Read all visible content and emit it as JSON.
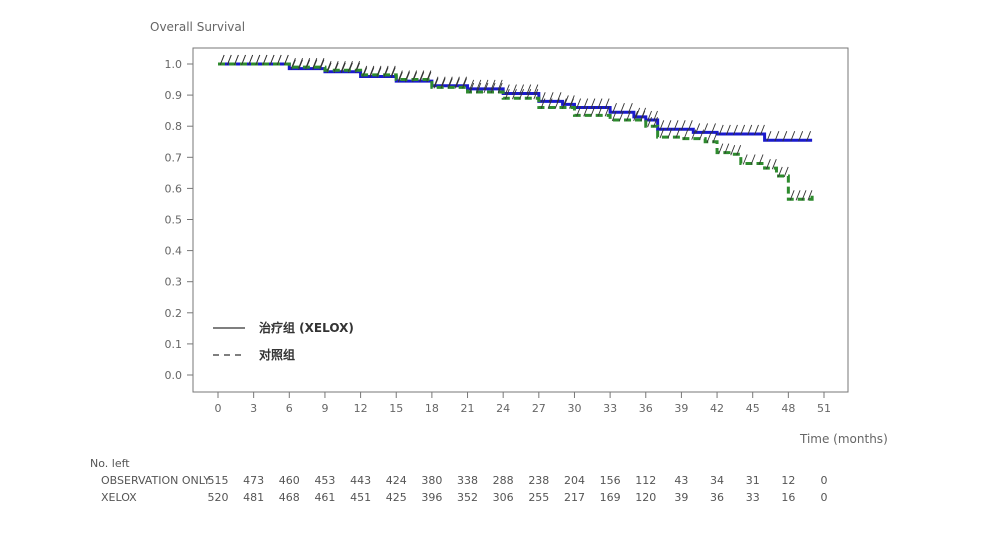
{
  "chart_data": {
    "type": "line",
    "title": "Overall Survival",
    "xlabel": "Time (months)",
    "ylabel": "",
    "xlim": [
      0,
      51
    ],
    "ylim": [
      0,
      1.0
    ],
    "x_ticks": [
      0,
      3,
      6,
      9,
      12,
      15,
      18,
      21,
      24,
      27,
      30,
      33,
      36,
      39,
      42,
      45,
      48,
      51
    ],
    "y_ticks": [
      "0.0",
      "0.1",
      "0.2",
      "0.3",
      "0.4",
      "0.5",
      "0.6",
      "0.7",
      "0.8",
      "0.9",
      "1.0"
    ],
    "grid": false,
    "legend_position": "bottom-left",
    "series": [
      {
        "name": "治疗组 (XELOX)",
        "color": "#1a1acc",
        "style": "solid",
        "points": [
          [
            0,
            1.0
          ],
          [
            3,
            1.0
          ],
          [
            6,
            0.985
          ],
          [
            9,
            0.975
          ],
          [
            12,
            0.96
          ],
          [
            15,
            0.945
          ],
          [
            18,
            0.93
          ],
          [
            21,
            0.92
          ],
          [
            24,
            0.905
          ],
          [
            27,
            0.88
          ],
          [
            29,
            0.87
          ],
          [
            30,
            0.86
          ],
          [
            33,
            0.845
          ],
          [
            35,
            0.83
          ],
          [
            36,
            0.82
          ],
          [
            37,
            0.79
          ],
          [
            40,
            0.78
          ],
          [
            42,
            0.775
          ],
          [
            45,
            0.775
          ],
          [
            46,
            0.755
          ],
          [
            48,
            0.755
          ],
          [
            50,
            0.755
          ]
        ]
      },
      {
        "name": "对照组",
        "color": "#2e8b2e",
        "style": "dashed",
        "points": [
          [
            0,
            1.0
          ],
          [
            3,
            1.0
          ],
          [
            6,
            0.99
          ],
          [
            9,
            0.98
          ],
          [
            12,
            0.965
          ],
          [
            15,
            0.95
          ],
          [
            18,
            0.925
          ],
          [
            21,
            0.91
          ],
          [
            24,
            0.89
          ],
          [
            27,
            0.86
          ],
          [
            30,
            0.835
          ],
          [
            33,
            0.82
          ],
          [
            36,
            0.8
          ],
          [
            37,
            0.765
          ],
          [
            39,
            0.76
          ],
          [
            41,
            0.75
          ],
          [
            42,
            0.715
          ],
          [
            43,
            0.71
          ],
          [
            44,
            0.68
          ],
          [
            46,
            0.665
          ],
          [
            47,
            0.64
          ],
          [
            48,
            0.565
          ],
          [
            49,
            0.565
          ],
          [
            50,
            0.585
          ]
        ]
      }
    ],
    "risk_table": {
      "header": "No. left",
      "rows": [
        {
          "label": "OBSERVATION ONLY",
          "values": [
            "515",
            "473",
            "460",
            "453",
            "443",
            "424",
            "380",
            "338",
            "288",
            "238",
            "204",
            "156",
            "112",
            "43",
            "34",
            "31",
            "12",
            "0"
          ]
        },
        {
          "label": "XELOX",
          "values": [
            "520",
            "481",
            "468",
            "461",
            "451",
            "425",
            "396",
            "352",
            "306",
            "255",
            "217",
            "169",
            "120",
            "39",
            "36",
            "33",
            "16",
            "0"
          ]
        }
      ]
    }
  }
}
